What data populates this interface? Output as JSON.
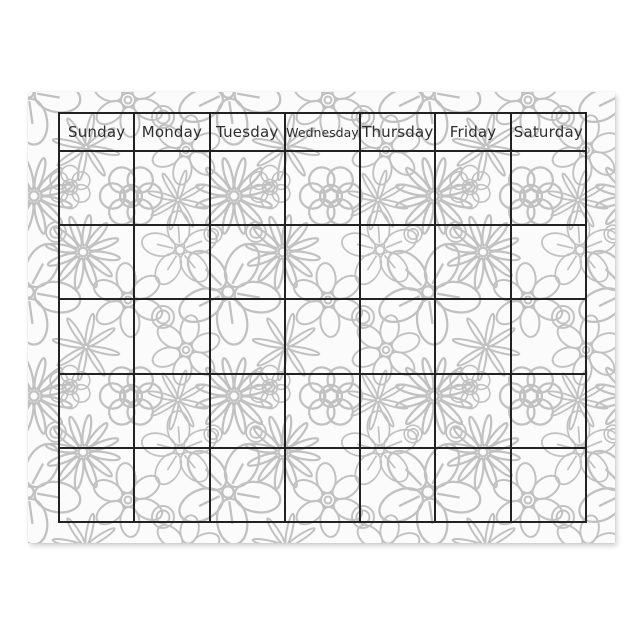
{
  "calendar": {
    "weekday_headers": [
      "Sunday",
      "Monday",
      "Tuesday",
      "Wednesday",
      "Thursday",
      "Friday",
      "Saturday"
    ],
    "body_rows": 5,
    "body_cols": 7,
    "cells_content": ""
  },
  "colors": {
    "grid_line": "#222222",
    "header_text": "#2e2e2e",
    "floral_outline": "#c1c1c1",
    "paper": "#fbfbfb",
    "backdrop": "#ffffff"
  },
  "icons": {
    "floral_pattern": "flower-doodle-outline-pattern"
  }
}
